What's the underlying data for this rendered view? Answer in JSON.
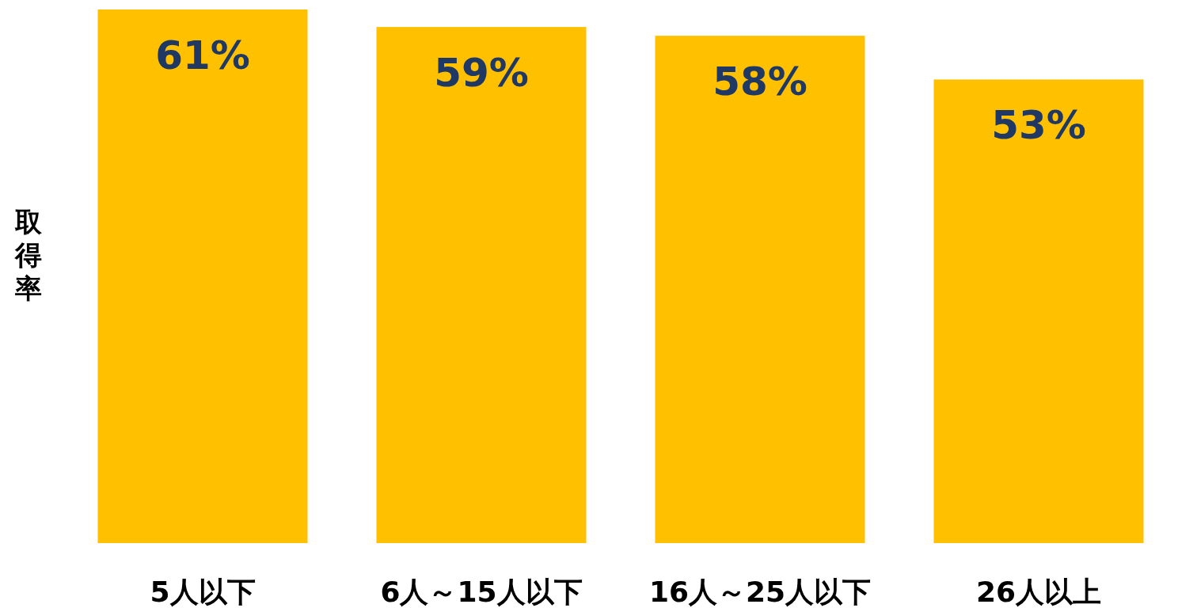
{
  "chart_data": {
    "type": "bar",
    "ylabel": "取得率",
    "categories": [
      "5人以下",
      "6人～15人以下",
      "16人～25人以下",
      "26人以上"
    ],
    "values": [
      61,
      59,
      58,
      53
    ],
    "value_labels": [
      "61%",
      "59%",
      "58%",
      "53%"
    ],
    "color": "#ffc000"
  }
}
